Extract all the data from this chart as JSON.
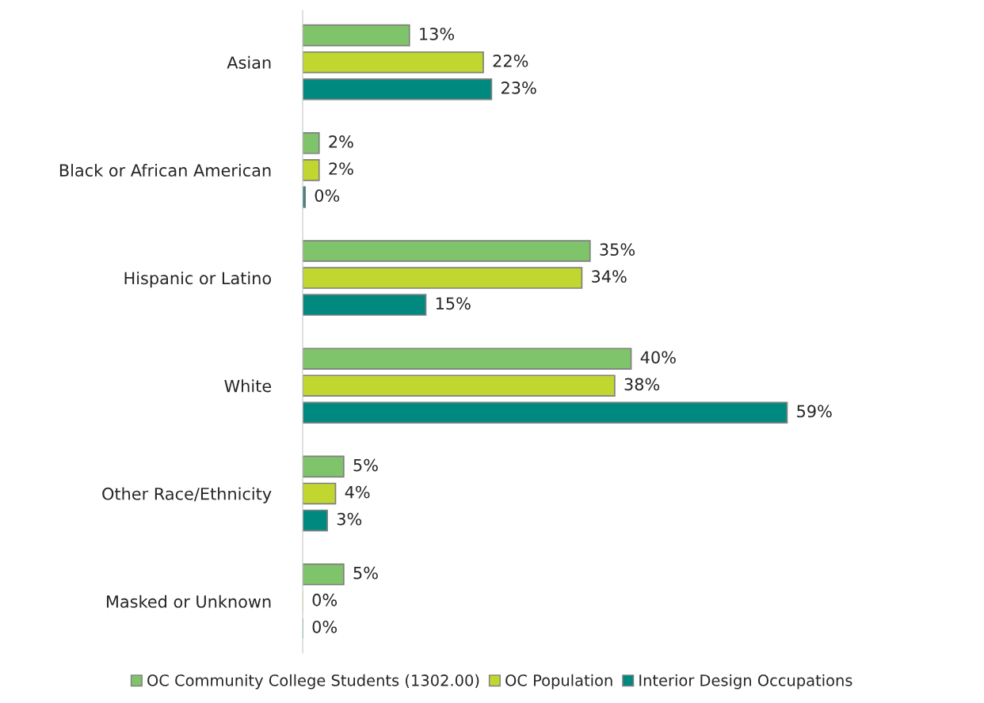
{
  "chart_data": {
    "type": "bar",
    "orientation": "horizontal",
    "categories": [
      "Asian",
      "Black or African American",
      "Hispanic or Latino",
      "White",
      "Other Race/Ethnicity",
      "Masked or Unknown"
    ],
    "series": [
      {
        "name": "OC Community College Students (1302.00)",
        "color": "#7fc46a",
        "values": [
          13,
          2,
          35,
          40,
          5,
          5
        ],
        "value_labels": [
          "13%",
          "2%",
          "35%",
          "40%",
          "5%",
          "5%"
        ]
      },
      {
        "name": "OC Population",
        "color": "#c1d72f",
        "values": [
          22,
          2,
          34,
          38,
          4,
          0
        ],
        "value_labels": [
          "22%",
          "2%",
          "34%",
          "38%",
          "4%",
          "0%"
        ]
      },
      {
        "name": "Interior Design Occupations",
        "color": "#008a7f",
        "values": [
          23,
          0.3,
          15,
          59,
          3,
          0
        ],
        "value_labels": [
          "23%",
          "0%",
          "15%",
          "59%",
          "3%",
          "0%"
        ]
      }
    ],
    "legend": "bottom",
    "tick_labels": "y"
  }
}
